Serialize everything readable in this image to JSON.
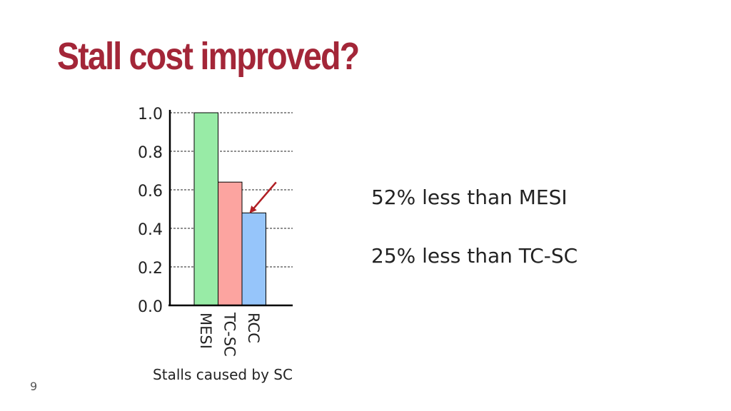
{
  "slide": {
    "title": "Stall cost improved?",
    "page_number": "9",
    "callouts": [
      "52% less than MESI",
      "25% less than TC-SC"
    ]
  },
  "chart_data": {
    "type": "bar",
    "categories": [
      "MESI",
      "TC-SC",
      "RCC"
    ],
    "values": [
      1.0,
      0.64,
      0.48
    ],
    "colors": [
      "#98eba6",
      "#fca4a0",
      "#96c5fa"
    ],
    "xlabel": "Stalls caused by SC",
    "ylabel": "",
    "ylim": [
      0,
      1.0
    ],
    "yticks": [
      "0.0",
      "0.2",
      "0.4",
      "0.6",
      "0.8",
      "1.0"
    ],
    "grid": true,
    "grid_style": "dashed",
    "annotation": {
      "type": "arrow",
      "target": "RCC",
      "color": "#b01e23"
    }
  }
}
